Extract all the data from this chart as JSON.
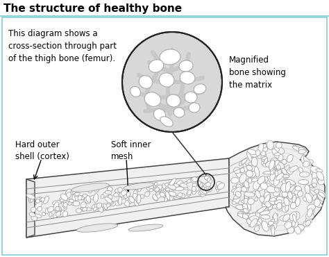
{
  "title": "The structure of healthy bone",
  "bg_color": "#ffffff",
  "border_color": "#7ecfd4",
  "title_color": "#000000",
  "title_fontsize": 11,
  "body_text": "This diagram shows a\ncross-section through part\nof the thigh bone (femur).",
  "body_fontsize": 8.5,
  "label_hard_outer": "Hard outer\nshell (cortex)",
  "label_soft_inner": "Soft inner\nmesh",
  "label_magnified": "Magnified\nbone showing\nthe matrix",
  "label_fontsize": 8.5,
  "bone_fill": "#f0f0f0",
  "bone_edge": "#444444",
  "spongy_fill": "#f8f8f8",
  "spongy_edge": "#777777",
  "magnified_bg": "#d4d4d4",
  "magnified_edge": "#222222"
}
